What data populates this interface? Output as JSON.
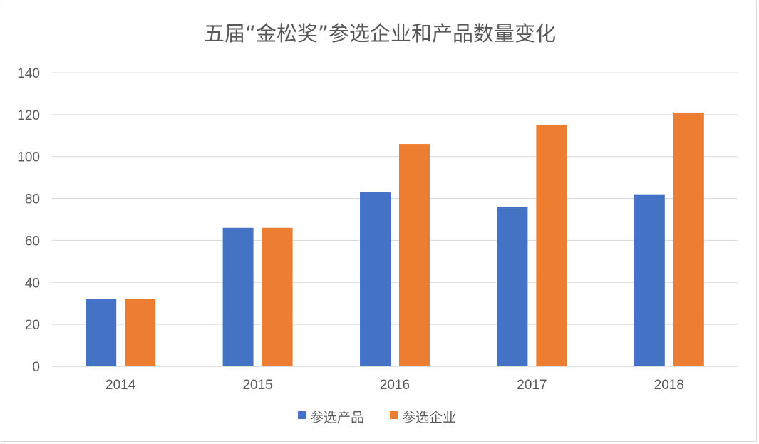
{
  "chart_data": {
    "type": "bar",
    "title": "五届“金松奖”参选企业和产品数量变化",
    "xlabel": "",
    "ylabel": "",
    "categories": [
      "2014",
      "2015",
      "2016",
      "2017",
      "2018"
    ],
    "series": [
      {
        "name": "参选产品",
        "values": [
          32,
          66,
          83,
          76,
          82
        ],
        "color": "#4472c4"
      },
      {
        "name": "参选企业",
        "values": [
          32,
          66,
          106,
          115,
          121
        ],
        "color": "#ed7d31"
      }
    ],
    "ylim": [
      0,
      140
    ],
    "yticks": [
      "0",
      "20",
      "40",
      "60",
      "80",
      "100",
      "120",
      "140"
    ],
    "grid": true,
    "legend": "bottom"
  }
}
